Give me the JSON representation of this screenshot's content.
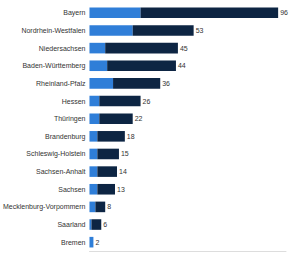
{
  "chart_data": {
    "type": "bar",
    "orientation": "horizontal",
    "stacked": true,
    "categories": [
      "Bayern",
      "Nordrhein-Westfalen",
      "Niedersachsen",
      "Baden-Württemberg",
      "Rheinland-Pfalz",
      "Hessen",
      "Thüringen",
      "Brandenburg",
      "Schleswig-Holstein",
      "Sachsen-Anhalt",
      "Sachsen",
      "Mecklenburg-Vorpommern",
      "Saarland",
      "Bremen"
    ],
    "series": [
      {
        "color": "#2f7ed8",
        "values": [
          26,
          22,
          8,
          9,
          12,
          5,
          5,
          4,
          4,
          4,
          4,
          3,
          1,
          2
        ]
      },
      {
        "color": "#0d2543",
        "values": [
          70,
          31,
          37,
          35,
          24,
          21,
          17,
          14,
          11,
          10,
          9,
          5,
          5,
          0
        ]
      }
    ],
    "totals": [
      96,
      53,
      45,
      44,
      36,
      26,
      22,
      18,
      15,
      14,
      13,
      8,
      6,
      2
    ],
    "xlim": [
      0,
      100
    ],
    "grid": false,
    "tick_labels": "y"
  }
}
